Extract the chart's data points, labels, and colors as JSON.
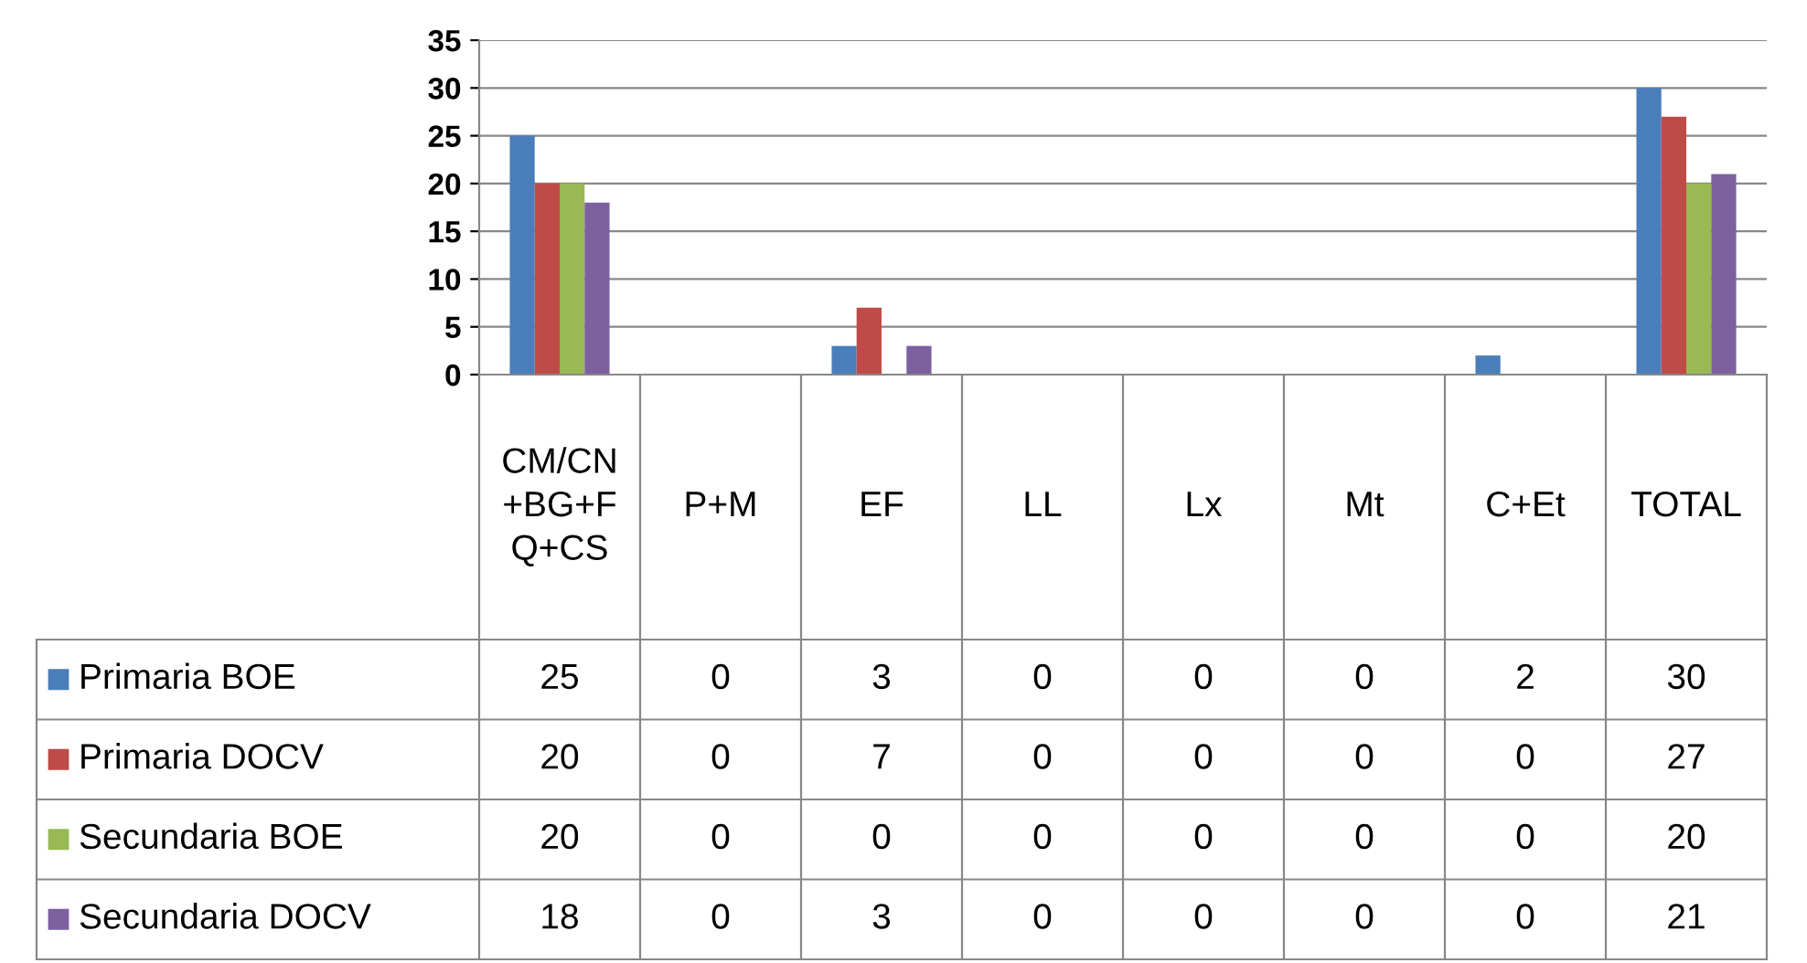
{
  "chart_data": {
    "type": "bar",
    "categories": [
      "CM/CN+BG+FQ+CS",
      "P+M",
      "EF",
      "LL",
      "Lx",
      "Mt",
      "C+Et",
      "TOTAL"
    ],
    "series": [
      {
        "name": "Primaria BOE",
        "color": "#4a7ebb",
        "values": [
          25,
          0,
          3,
          0,
          0,
          0,
          2,
          30
        ]
      },
      {
        "name": "Primaria DOCV",
        "color": "#be4b48",
        "values": [
          20,
          0,
          7,
          0,
          0,
          0,
          0,
          27
        ]
      },
      {
        "name": "Secundaria BOE",
        "color": "#98b954",
        "values": [
          20,
          0,
          0,
          0,
          0,
          0,
          0,
          20
        ]
      },
      {
        "name": "Secundaria DOCV",
        "color": "#7d60a0",
        "values": [
          18,
          0,
          3,
          0,
          0,
          0,
          0,
          21
        ]
      }
    ],
    "ylim": [
      0,
      35
    ],
    "yticks": [
      0,
      5,
      10,
      15,
      20,
      25,
      30,
      35
    ],
    "grid": "y",
    "legend": "left",
    "data_labels": true
  }
}
